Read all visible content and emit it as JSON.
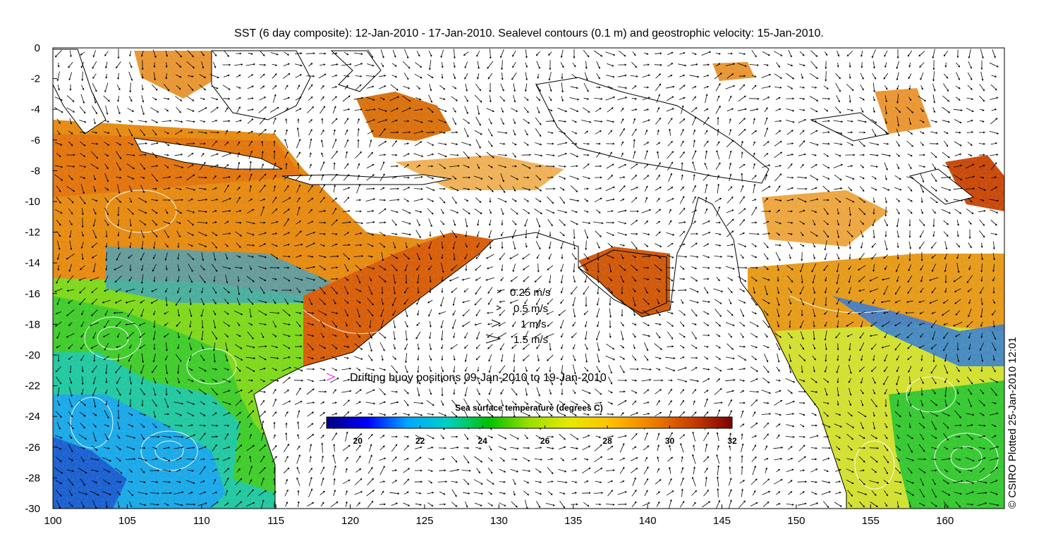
{
  "title": "SST (6 day composite): 12-Jan-2010 - 17-Jan-2010. Sealevel contours (0.1 m) and geostrophic velocity: 15-Jan-2010.",
  "credit": "© CSIRO Plotted 25-Jan-2010 12:01",
  "axes": {
    "x_ticks": [
      "100",
      "105",
      "110",
      "115",
      "120",
      "125",
      "130",
      "135",
      "140",
      "145",
      "150",
      "155",
      "160"
    ],
    "y_ticks": [
      "0",
      "-2",
      "-4",
      "-6",
      "-8",
      "-10",
      "-12",
      "-14",
      "-16",
      "-18",
      "-20",
      "-22",
      "-24",
      "-26",
      "-28",
      "-30"
    ],
    "x_range": [
      100,
      164
    ],
    "y_range": [
      -30,
      0
    ]
  },
  "velocity_legend": [
    {
      "label": "0.25 m/s",
      "speed": 0.25
    },
    {
      "label": "0.5 m/s",
      "speed": 0.5
    },
    {
      "label": "1 m/s",
      "speed": 1
    },
    {
      "label": "1.5 m/s",
      "speed": 1.5
    }
  ],
  "buoy_legend": {
    "label": "Drifting buoy positions 09-Jan-2010 to 19-Jan-2010",
    "marker_color": "#ee22ee"
  },
  "colorbar": {
    "title": "Sea surface temperature (degrees C)",
    "ticks": [
      "20",
      "22",
      "24",
      "26",
      "28",
      "30",
      "32"
    ],
    "range": [
      19,
      32
    ],
    "colors": [
      "#00007f",
      "#0000ff",
      "#00a8ff",
      "#00d0c0",
      "#00c000",
      "#9be000",
      "#e8e800",
      "#ffc000",
      "#f08000",
      "#c84000",
      "#800000"
    ]
  },
  "land_color": "#ffffff",
  "coast_color": "#000000",
  "contour_color": "#ffffff"
}
